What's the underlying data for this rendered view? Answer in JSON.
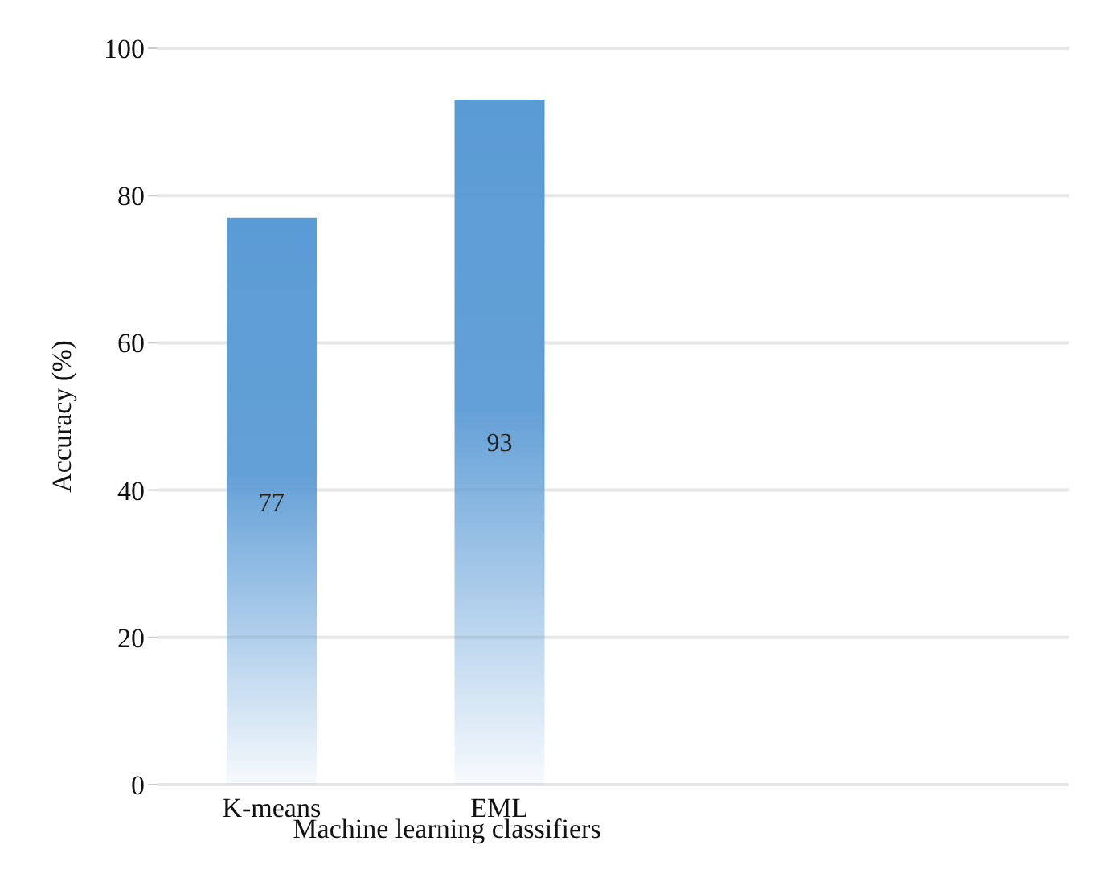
{
  "chart_data": {
    "type": "bar",
    "categories": [
      "K-means",
      "EML",
      null,
      null
    ],
    "values": [
      77,
      93,
      null,
      null
    ],
    "color": "#5b9bd5",
    "xlabel": "Machine learning classifiers",
    "ylabel": "Accuracy (%)",
    "ylim": [
      0,
      100
    ],
    "yticks": [
      0,
      20,
      40,
      60,
      80,
      100
    ],
    "grid": "y",
    "data_labels": true
  }
}
